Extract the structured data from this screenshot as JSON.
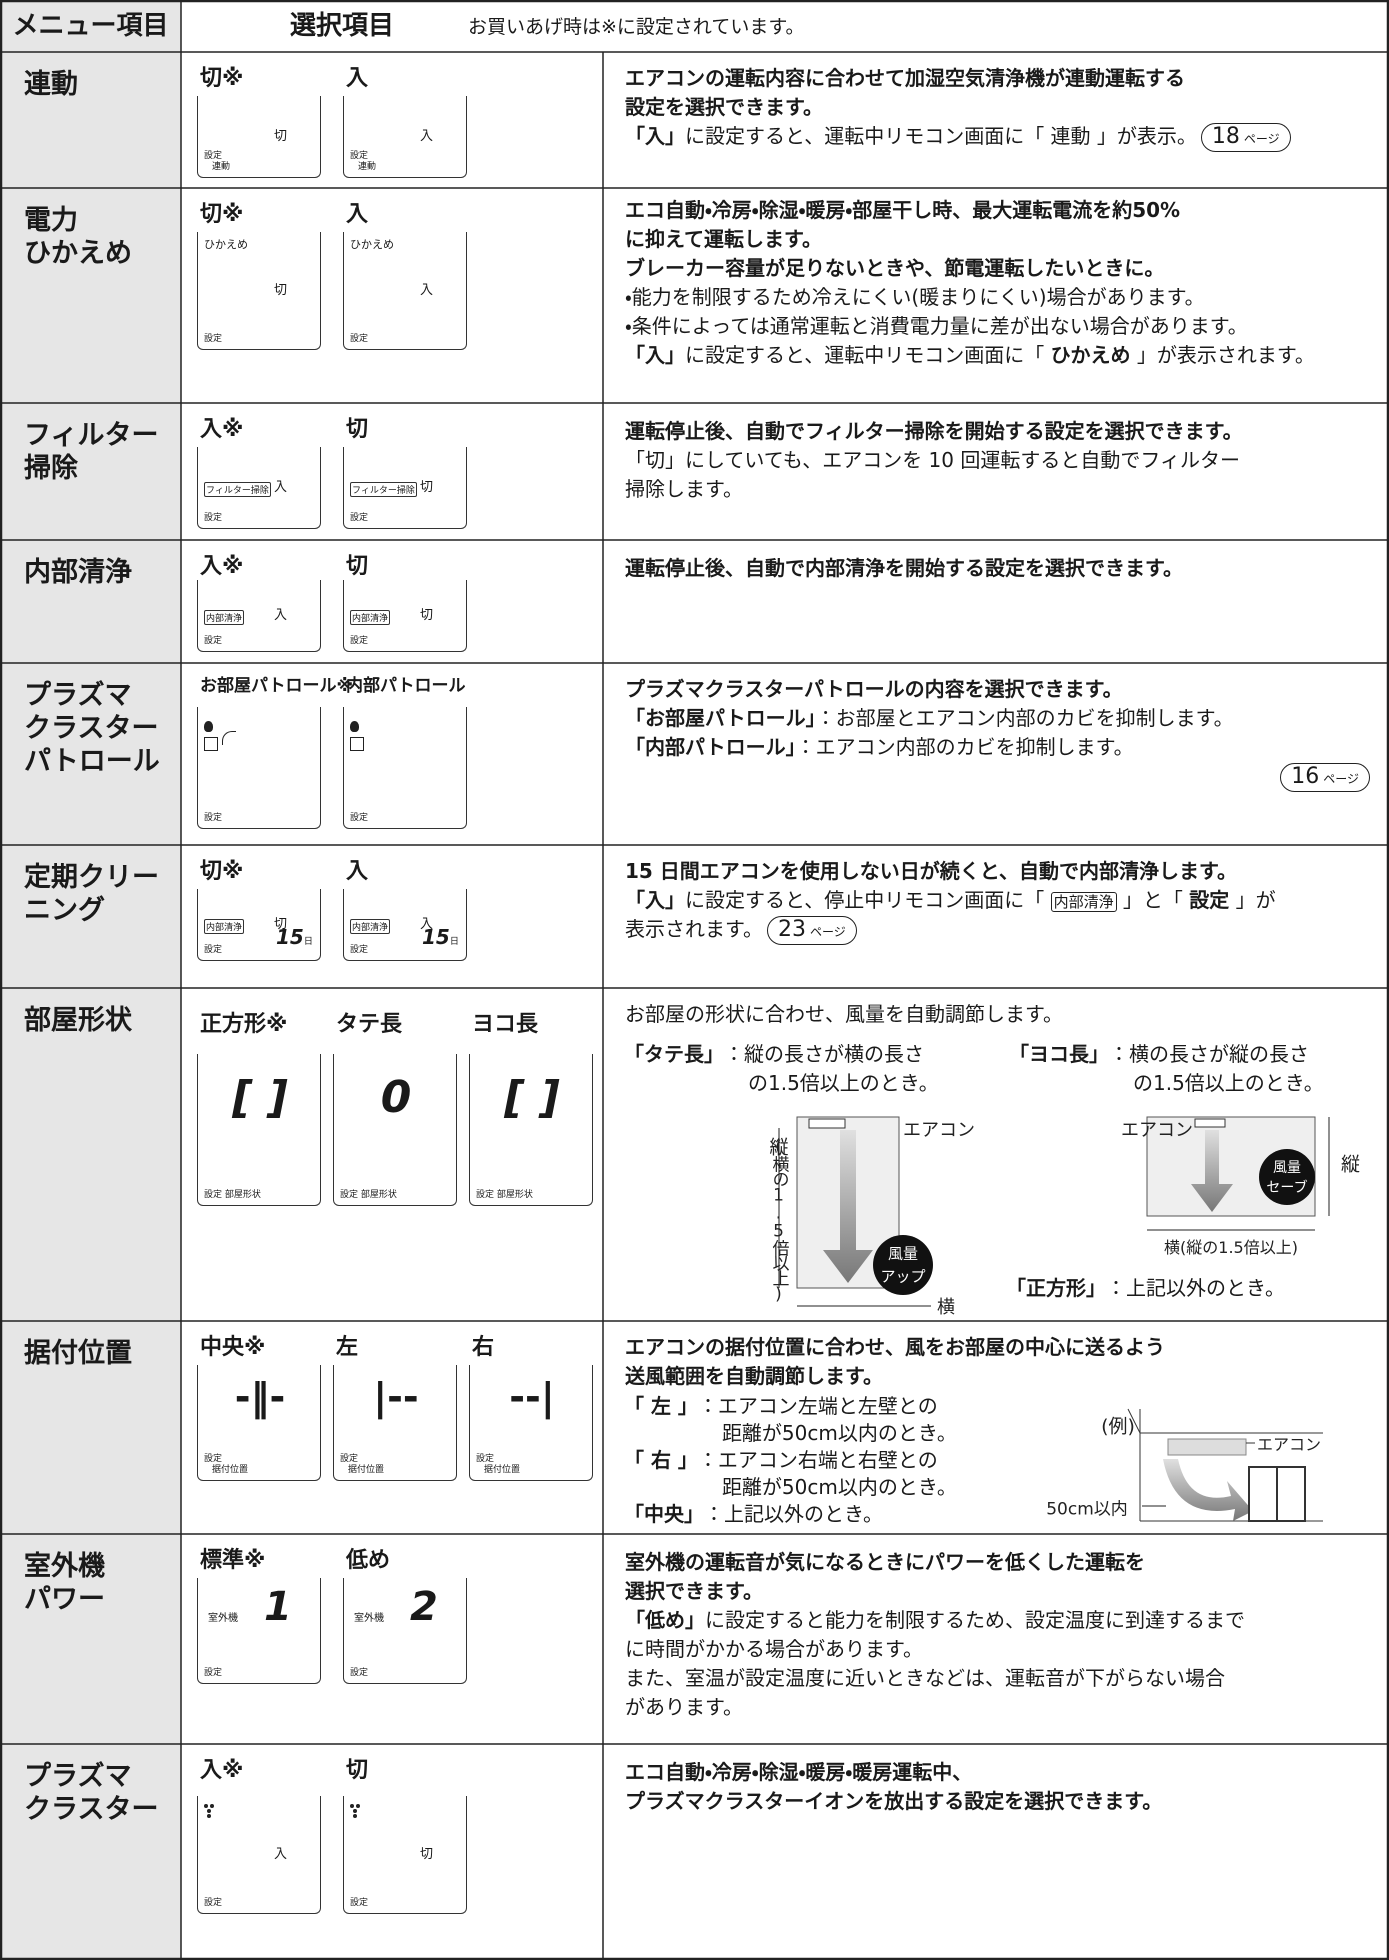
{
  "header": {
    "menu": "メニュー項目",
    "options": "選択項目",
    "note": "お買いあげ時は※に設定されています。"
  },
  "rows": [
    {
      "menu": [
        "連動"
      ],
      "options": [
        {
          "label": "切※",
          "screen": {
            "left": [
              "設定",
              "連動"
            ],
            "right": "切"
          }
        },
        {
          "label": "入",
          "screen": {
            "left": [
              "設定",
              "連動"
            ],
            "right": "入"
          }
        }
      ],
      "description": [
        [
          {
            "text": "エアコンの運転内容に合わせて加湿空気清浄機が連動運転する",
            "bold": true
          }
        ],
        [
          {
            "text": "設定を選択できます。",
            "bold": true
          }
        ],
        [
          {
            "text": "「入」",
            "bold": true
          },
          "に設定すると、運転中リモコン画面に「 連動 」が表示。",
          {
            "ref": "18",
            "unit": "ページ"
          }
        ]
      ]
    },
    {
      "menu": [
        "電力",
        "ひかえめ"
      ],
      "options": [
        {
          "label": "切※",
          "screen": {
            "top": "ひかえめ",
            "left": [
              "設定"
            ],
            "right": "切"
          }
        },
        {
          "label": "入",
          "screen": {
            "top": "ひかえめ",
            "left": [
              "設定"
            ],
            "right": "入"
          }
        }
      ],
      "description": [
        [
          {
            "text": "エコ自動・冷房・除湿・暖房・部屋干し時、最大運転電流を約50%",
            "bold": true
          }
        ],
        [
          {
            "text": "に抑えて運転します。",
            "bold": true
          }
        ],
        [
          {
            "text": "ブレーカー容量が足りないときや、節電運転したいときに。",
            "bold": true
          }
        ],
        "・能力を制限するため冷えにくい(暖まりにくい)場合があります。",
        "・条件によっては通常運転と消費電力量に差が出ない場合があります。",
        [
          {
            "text": "「入」",
            "bold": true
          },
          "に設定すると、運転中リモコン画面に「 ",
          {
            "text": "ひかえめ",
            "bold": true
          },
          " 」が表示されます。"
        ]
      ]
    },
    {
      "menu": [
        "フィルター",
        "掃除"
      ],
      "options": [
        {
          "label": "入※",
          "screen": {
            "tag": "フィルター掃除",
            "left": [
              "設定"
            ],
            "right": "入"
          }
        },
        {
          "label": "切",
          "screen": {
            "tag": "フィルター掃除",
            "left": [
              "設定"
            ],
            "right": "切"
          }
        }
      ],
      "description": [
        [
          {
            "text": "運転停止後、自動でフィルター掃除を開始する設定を選択できます。",
            "bold": true
          }
        ],
        "「切」にしていても、エアコンを 10 回運転すると自動でフィルター",
        "掃除します。"
      ]
    },
    {
      "menu": [
        "内部清浄"
      ],
      "options": [
        {
          "label": "入※",
          "screen": {
            "tag": "内部清浄",
            "left": [
              "設定"
            ],
            "right": "入"
          }
        },
        {
          "label": "切",
          "screen": {
            "tag": "内部清浄",
            "left": [
              "設定"
            ],
            "right": "切"
          }
        }
      ],
      "description": [
        [
          {
            "text": "運転停止後、自動で内部清浄を開始する設定を選択できます。",
            "bold": true
          }
        ]
      ]
    },
    {
      "menu": [
        "プラズマ",
        "クラスター",
        "パトロール"
      ],
      "options": [
        {
          "label": "お部屋パトロール※",
          "screen": {
            "left": [
              "設定"
            ]
          }
        },
        {
          "label": "内部パトロール",
          "screen": {
            "left": [
              "設定"
            ]
          }
        }
      ],
      "description": [
        [
          {
            "text": "プラズマクラスターパトロールの内容を選択できます。",
            "bold": true
          }
        ],
        [
          {
            "text": "「お部屋パトロール」",
            "bold": true
          },
          "：お部屋とエアコン内部のカビを抑制します。"
        ],
        [
          {
            "text": "「内部パトロール」",
            "bold": true
          },
          "：エアコン内部のカビを抑制します。"
        ],
        [
          {
            "ref": "16",
            "unit": "ページ"
          }
        ]
      ]
    },
    {
      "menu": [
        "定期クリー",
        "ニング"
      ],
      "options": [
        {
          "label": "切※",
          "screen": {
            "tag": "内部清浄",
            "left": [
              "設定"
            ],
            "right": "切",
            "big": "15",
            "unit": "日"
          }
        },
        {
          "label": "入",
          "screen": {
            "tag": "内部清浄",
            "left": [
              "設定"
            ],
            "right": "入",
            "big": "15",
            "unit": "日"
          }
        }
      ],
      "description": [
        [
          {
            "text": "15 日間エアコンを使用しない日が続くと、自動で内部清浄します。",
            "bold": true
          }
        ],
        [
          {
            "text": "「入」",
            "bold": true
          },
          "に設定すると、停止中リモコン画面に「 ",
          {
            "tag": "内部清浄"
          },
          " 」と「 ",
          {
            "text": "設定",
            "bold": true
          },
          " 」が"
        ],
        [
          "表示されます。",
          {
            "ref": "23",
            "unit": "ページ"
          }
        ]
      ]
    },
    {
      "menu": [
        "部屋形状"
      ],
      "options": [
        {
          "label": "正方形※",
          "screen": {
            "big": "[ ]",
            "left": [
              "設定 部屋形状"
            ]
          }
        },
        {
          "label": "タテ長",
          "screen": {
            "big": "0",
            "left": [
              "設定 部屋形状"
            ]
          }
        },
        {
          "label": "ヨコ長",
          "screen": {
            "big": "[ ]",
            "left": [
              "設定 部屋形状"
            ]
          }
        }
      ],
      "description": [
        "お部屋の形状に合わせ、風量を自動調節します。"
      ],
      "cases": [
        {
          "label": "「タテ長」",
          "lines": [
            "：縦の長さが横の長さ",
            "の1.5倍以上のとき。"
          ]
        },
        {
          "label": "「ヨコ長」",
          "lines": [
            "：横の長さが縦の長さ",
            "の1.5倍以上のとき。"
          ]
        },
        {
          "label": "「正方形」",
          "lines": [
            "：上記以外のとき。"
          ]
        }
      ],
      "diagram": [
        "エアコン",
        "縦",
        "(横の1.5倍以上)",
        "風量",
        "アップ",
        "横",
        "エアコン",
        "縦",
        "風量",
        "セーブ",
        "横(縦の1.5倍以上)"
      ]
    },
    {
      "menu": [
        "据付位置"
      ],
      "options": [
        {
          "label": "中央※",
          "screen": {
            "big": "-‖-",
            "left": [
              "設定",
              "据付位置"
            ]
          }
        },
        {
          "label": "左",
          "screen": {
            "big": "|--",
            "left": [
              "設定",
              "据付位置"
            ]
          }
        },
        {
          "label": "右",
          "screen": {
            "big": "--|",
            "left": [
              "設定",
              "据付位置"
            ]
          }
        }
      ],
      "description": [
        [
          {
            "text": "エアコンの据付位置に合わせ、風をお部屋の中心に送るよう",
            "bold": true
          }
        ],
        [
          {
            "text": "送風範囲を自動調節します。",
            "bold": true
          }
        ]
      ],
      "cases": [
        {
          "label": "「 左 」",
          "lines": [
            "：エアコン左端と左壁との",
            "距離が50cm以内のとき。"
          ]
        },
        {
          "label": "「 右 」",
          "lines": [
            "：エアコン右端と右壁との",
            "距離が50cm以内のとき。"
          ]
        },
        {
          "label": "「中央」",
          "lines": [
            "：上記以外のとき。"
          ]
        }
      ],
      "diagram": [
        "(例)",
        "エアコン",
        "50cm以内"
      ]
    },
    {
      "menu": [
        "室外機",
        "パワー"
      ],
      "options": [
        {
          "label": "標準※",
          "screen": {
            "label": "室外機",
            "big": "1",
            "left": [
              "設定"
            ]
          }
        },
        {
          "label": "低め",
          "screen": {
            "label": "室外機",
            "big": "2",
            "left": [
              "設定"
            ]
          }
        }
      ],
      "description": [
        [
          {
            "text": "室外機の運転音が気になるときにパワーを低くした運転を",
            "bold": true
          }
        ],
        [
          {
            "text": "選択できます。",
            "bold": true
          }
        ],
        [
          {
            "text": "「低め」",
            "bold": true
          },
          "に設定すると能力を制限するため、設定温度に到達するまで"
        ],
        "に時間がかかる場合があります。",
        "また、室温が設定温度に近いときなどは、運転音が下がらない場合",
        "があります。"
      ]
    },
    {
      "menu": [
        "プラズマ",
        "クラスター"
      ],
      "options": [
        {
          "label": "入※",
          "screen": {
            "left": [
              "設定"
            ],
            "right": "入"
          }
        },
        {
          "label": "切",
          "screen": {
            "left": [
              "設定"
            ],
            "right": "切"
          }
        }
      ],
      "description": [
        [
          {
            "text": "エコ自動・冷房・除湿・暖房・暖房運転中、",
            "bold": true
          }
        ],
        [
          {
            "text": "プラズマクラスターイオンを放出する設定を選択できます。",
            "bold": true
          }
        ]
      ]
    }
  ]
}
